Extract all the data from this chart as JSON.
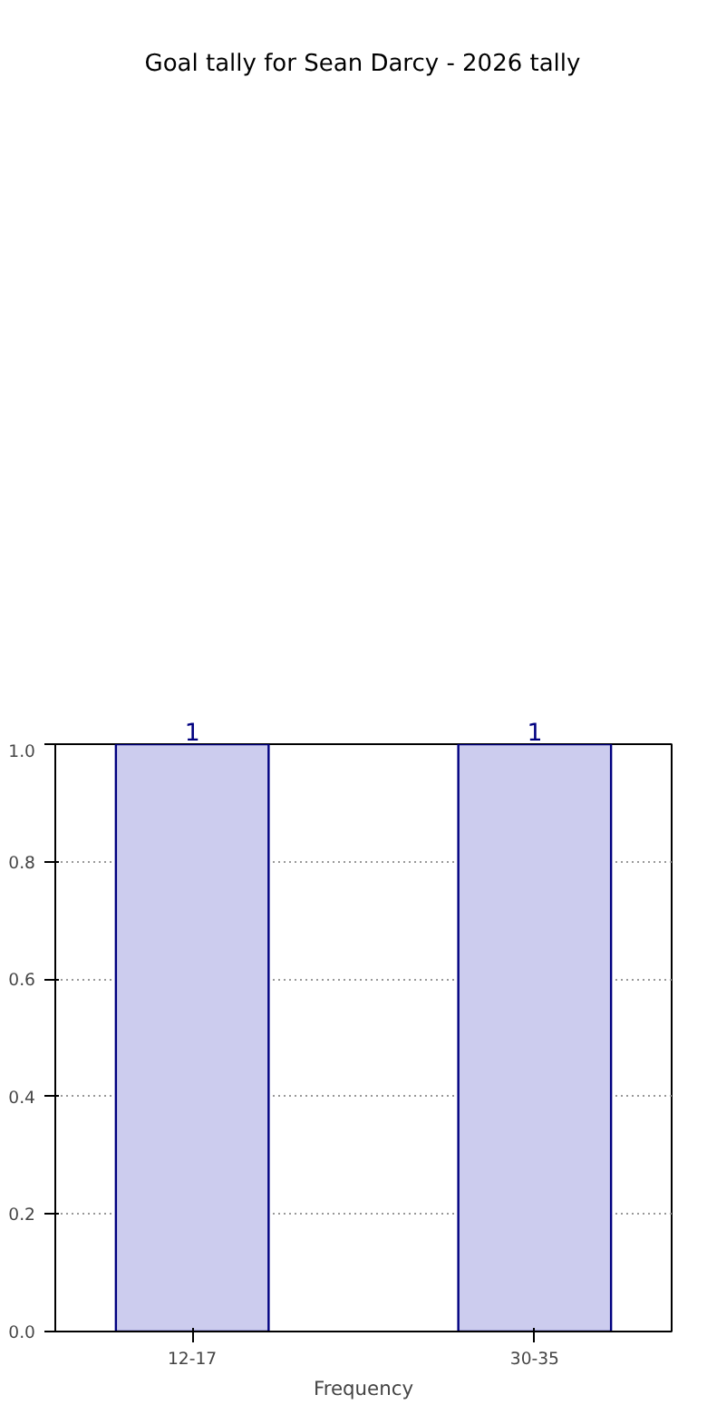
{
  "chart_data": {
    "type": "bar",
    "title": "Goal tally for Sean Darcy - 2026 tally",
    "xlabel": "Frequency",
    "categories": [
      "12-17",
      "30-35"
    ],
    "values": [
      1,
      1
    ],
    "color": "#ccccee",
    "ylim": [
      0,
      1
    ],
    "yticks": [
      {
        "value": 0,
        "label": "0.0"
      },
      {
        "value": 0.2,
        "label": "0.2"
      },
      {
        "value": 0.4,
        "label": "0.4"
      },
      {
        "value": 0.6,
        "label": "0.6"
      },
      {
        "value": 0.8,
        "label": "0.8"
      },
      {
        "value": 1,
        "label": "1.0"
      }
    ],
    "grid": true,
    "data_labels": true
  }
}
